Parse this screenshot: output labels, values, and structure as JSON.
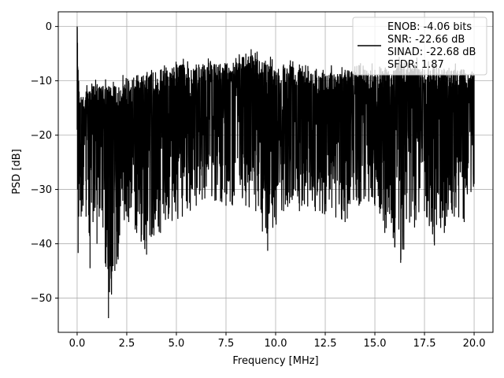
{
  "chart_data": {
    "type": "line",
    "xlabel": "Frequency [MHz]",
    "ylabel": "PSD [dB]",
    "xlim": [
      -0.95,
      20.95
    ],
    "ylim": [
      -56.3,
      2.7
    ],
    "x_ticks": [
      0.0,
      2.5,
      5.0,
      7.5,
      10.0,
      12.5,
      15.0,
      17.5,
      20.0
    ],
    "x_tick_labels": [
      "0.0",
      "2.5",
      "5.0",
      "7.5",
      "10.0",
      "12.5",
      "15.0",
      "17.5",
      "20.0"
    ],
    "y_ticks": [
      0,
      -10,
      -20,
      -30,
      -40,
      -50
    ],
    "y_tick_labels": [
      "0",
      "−10",
      "−20",
      "−30",
      "−40",
      "−50"
    ],
    "grid": true,
    "legend_placement": "upper right",
    "legend_entries": [
      "ENOB: -4.06 bits",
      "SNR: -22.66 dB",
      "SINAD: -22.68 dB",
      "SFDR: 1.87"
    ],
    "series": [
      {
        "color": "#000000",
        "x": [
          0.0,
          0.02,
          0.05,
          0.08,
          0.1,
          0.15,
          0.2,
          0.3,
          0.45,
          0.6,
          0.65,
          0.8,
          0.85,
          1.0,
          1.3,
          1.58,
          1.9,
          2.6,
          3.0,
          3.5,
          4.2,
          5.3,
          6.0,
          7.0,
          7.5,
          8.5,
          9.0,
          9.6,
          10.4,
          11.2,
          12.0,
          13.5,
          14.2,
          15.0,
          15.5,
          16.3,
          17.0,
          17.5,
          18.0,
          18.5,
          19.0,
          19.5,
          20.0
        ],
        "peak": [
          0.0,
          -3,
          -8,
          -10,
          -12,
          -14,
          -13,
          -13,
          -12,
          -12,
          -12,
          -11,
          -11,
          -11,
          -11,
          -11,
          -11,
          -10,
          -9,
          -9,
          -8,
          -7,
          -7,
          -7,
          -7,
          -5,
          -6,
          -7,
          -7,
          -7,
          -9,
          -8,
          -8,
          -8,
          -8,
          -7,
          -7,
          -8,
          -7,
          -8,
          -8,
          -8,
          -9
        ],
        "trough": [
          -19,
          -30,
          -41.7,
          -35,
          -29,
          -32,
          -35,
          -33,
          -35,
          -38,
          -44.5,
          -36,
          -34,
          -40,
          -37,
          -53.7,
          -45,
          -36,
          -38,
          -42,
          -38,
          -35,
          -33,
          -32,
          -33,
          -33,
          -34,
          -41.3,
          -34,
          -34,
          -34,
          -36,
          -33,
          -33,
          -38,
          -43.5,
          -37,
          -34,
          -40.3,
          -38,
          -35,
          -36,
          -29
        ]
      }
    ]
  },
  "colors": {
    "line": "#000000",
    "grid": "#b0b0b0",
    "axes": "#000000",
    "legend_border": "#cccccc"
  }
}
